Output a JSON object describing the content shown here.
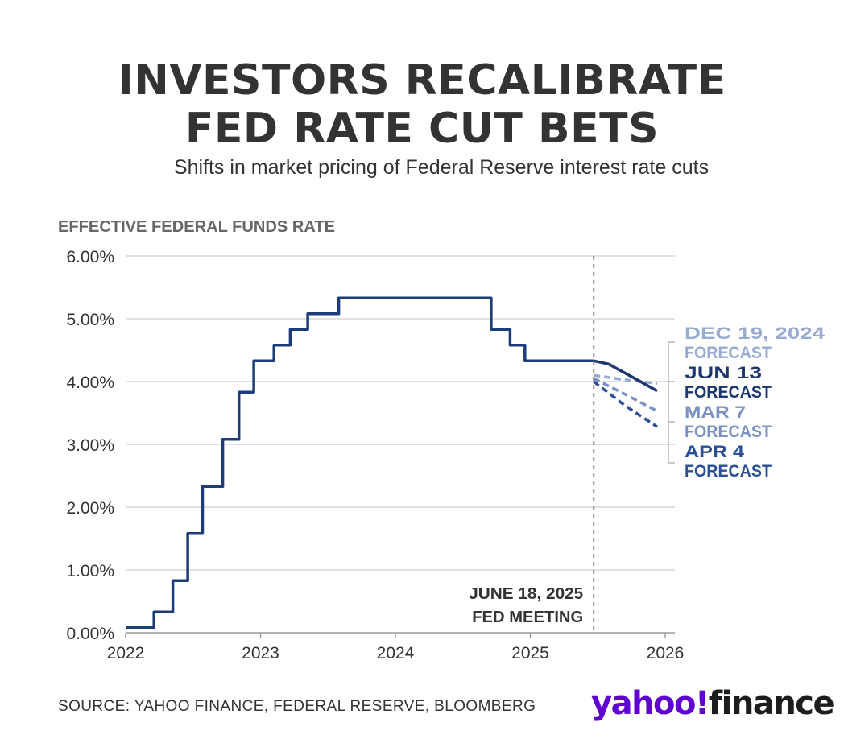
{
  "header": {
    "title_line1": "INVESTORS RECALIBRATE",
    "title_line2": "FED RATE CUT BETS",
    "subtitle": "Shifts in market pricing of Federal Reserve interest rate cuts"
  },
  "footer": {
    "source": "SOURCE: YAHOO FINANCE, FEDERAL RESERVE, BLOOMBERG",
    "logo_part1": "yahoo!",
    "logo_part2": "finance"
  },
  "colors": {
    "primary": "#1d3c7a",
    "jun13": "#1b3670",
    "dec19": "#97aad0",
    "mar7": "#7b91c4",
    "apr4": "#2b4f95",
    "grid": "#cfcfcf",
    "text": "#333333",
    "axis_title": "#666666",
    "logo_purple": "#6001d2"
  },
  "chart_data": {
    "type": "line",
    "ylabel": "EFFECTIVE FEDERAL FUNDS RATE",
    "xlabel": "",
    "xlim": [
      2022.0,
      2026.0
    ],
    "ylim": [
      0,
      6
    ],
    "x_ticks": [
      "2022",
      "2023",
      "2024",
      "2025",
      "2026"
    ],
    "y_ticks": [
      "0.00%",
      "1.00%",
      "2.00%",
      "3.00%",
      "4.00%",
      "5.00%",
      "6.00%"
    ],
    "grid": true,
    "series": [
      {
        "name": "",
        "style": "solid",
        "step": true,
        "points": [
          [
            2022.0,
            0.08
          ],
          [
            2022.21,
            0.08
          ],
          [
            2022.21,
            0.33
          ],
          [
            2022.35,
            0.33
          ],
          [
            2022.35,
            0.83
          ],
          [
            2022.46,
            0.83
          ],
          [
            2022.46,
            1.58
          ],
          [
            2022.57,
            1.58
          ],
          [
            2022.57,
            2.33
          ],
          [
            2022.72,
            2.33
          ],
          [
            2022.72,
            3.08
          ],
          [
            2022.84,
            3.08
          ],
          [
            2022.84,
            3.83
          ],
          [
            2022.95,
            3.83
          ],
          [
            2022.95,
            4.33
          ],
          [
            2023.1,
            4.33
          ],
          [
            2023.1,
            4.58
          ],
          [
            2023.22,
            4.58
          ],
          [
            2023.22,
            4.83
          ],
          [
            2023.35,
            4.83
          ],
          [
            2023.35,
            5.08
          ],
          [
            2023.58,
            5.08
          ],
          [
            2023.58,
            5.33
          ],
          [
            2024.71,
            5.33
          ],
          [
            2024.71,
            4.83
          ],
          [
            2024.85,
            4.83
          ],
          [
            2024.85,
            4.58
          ],
          [
            2024.96,
            4.58
          ],
          [
            2024.96,
            4.33
          ],
          [
            2025.47,
            4.33
          ]
        ]
      },
      {
        "name": "JUN 13 FORECAST",
        "style": "solid",
        "points": [
          [
            2025.47,
            4.33
          ],
          [
            2025.58,
            4.28
          ],
          [
            2025.75,
            4.08
          ],
          [
            2025.94,
            3.85
          ]
        ]
      },
      {
        "name": "DEC 19, 2024 FORECAST",
        "style": "dashed",
        "points": [
          [
            2025.47,
            4.1
          ],
          [
            2025.7,
            4.03
          ],
          [
            2025.94,
            3.97
          ]
        ]
      },
      {
        "name": "MAR 7 FORECAST",
        "style": "dashed",
        "points": [
          [
            2025.47,
            4.05
          ],
          [
            2025.7,
            3.8
          ],
          [
            2025.94,
            3.53
          ]
        ]
      },
      {
        "name": "APR 4 FORECAST",
        "style": "dashed",
        "points": [
          [
            2025.47,
            4.0
          ],
          [
            2025.7,
            3.62
          ],
          [
            2025.94,
            3.28
          ]
        ]
      }
    ],
    "labels": [
      {
        "line1": "DEC 19, 2024",
        "line2": "FORECAST",
        "color_key": "dec19"
      },
      {
        "line1": "JUN 13",
        "line2": "FORECAST",
        "color_key": "jun13"
      },
      {
        "line1": "MAR 7",
        "line2": "FORECAST",
        "color_key": "mar7"
      },
      {
        "line1": "APR 4",
        "line2": "FORECAST",
        "color_key": "apr4"
      }
    ],
    "annotations": [
      {
        "x": 2025.47,
        "line1": "JUNE 18, 2025",
        "line2": "FED MEETING"
      }
    ]
  }
}
